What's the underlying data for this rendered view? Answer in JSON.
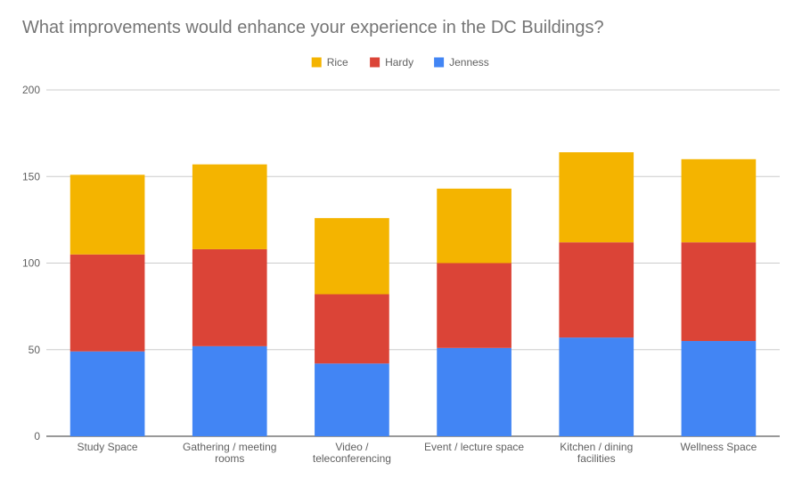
{
  "chart_data": {
    "type": "bar",
    "stacked": true,
    "title": "What improvements would enhance your experience in the DC Buildings?",
    "xlabel": "",
    "ylabel": "",
    "ylim": [
      0,
      200
    ],
    "yticks": [
      0,
      50,
      100,
      150,
      200
    ],
    "grid": true,
    "legend_position": "top",
    "categories": [
      [
        "Study Space"
      ],
      [
        "Gathering / meeting",
        "rooms"
      ],
      [
        "Video /",
        "teleconferencing"
      ],
      [
        "Event / lecture space"
      ],
      [
        "Kitchen / dining",
        "facilities"
      ],
      [
        "Wellness Space"
      ]
    ],
    "series": [
      {
        "name": "Jenness",
        "color": "#4285f4",
        "values": [
          49,
          52,
          42,
          51,
          57,
          55
        ]
      },
      {
        "name": "Hardy",
        "color": "#db4437",
        "values": [
          56,
          56,
          40,
          49,
          55,
          57
        ]
      },
      {
        "name": "Rice",
        "color": "#f4b400",
        "values": [
          46,
          49,
          44,
          43,
          52,
          48
        ]
      }
    ],
    "legend_order": [
      "Rice",
      "Hardy",
      "Jenness"
    ]
  }
}
